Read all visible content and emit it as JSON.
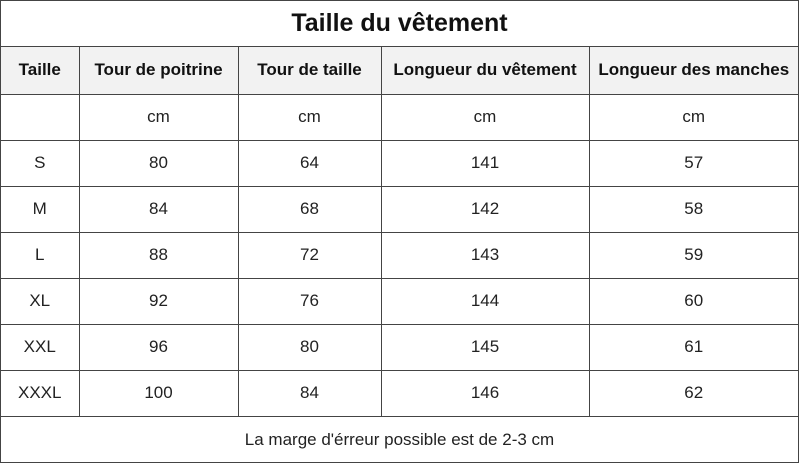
{
  "title": "Taille du vêtement",
  "columns": [
    "Taille",
    "Tour de poitrine",
    "Tour de taille",
    "Longueur du vêtement",
    "Longueur des manches"
  ],
  "units": [
    "",
    "cm",
    "cm",
    "cm",
    "cm"
  ],
  "rows": [
    [
      "S",
      "80",
      "64",
      "141",
      "57"
    ],
    [
      "M",
      "84",
      "68",
      "142",
      "58"
    ],
    [
      "L",
      "88",
      "72",
      "143",
      "59"
    ],
    [
      "XL",
      "92",
      "76",
      "144",
      "60"
    ],
    [
      "XXL",
      "96",
      "80",
      "145",
      "61"
    ],
    [
      "XXXL",
      "100",
      "84",
      "146",
      "62"
    ]
  ],
  "note": "La marge d'érreur possible est de 2-3 cm"
}
